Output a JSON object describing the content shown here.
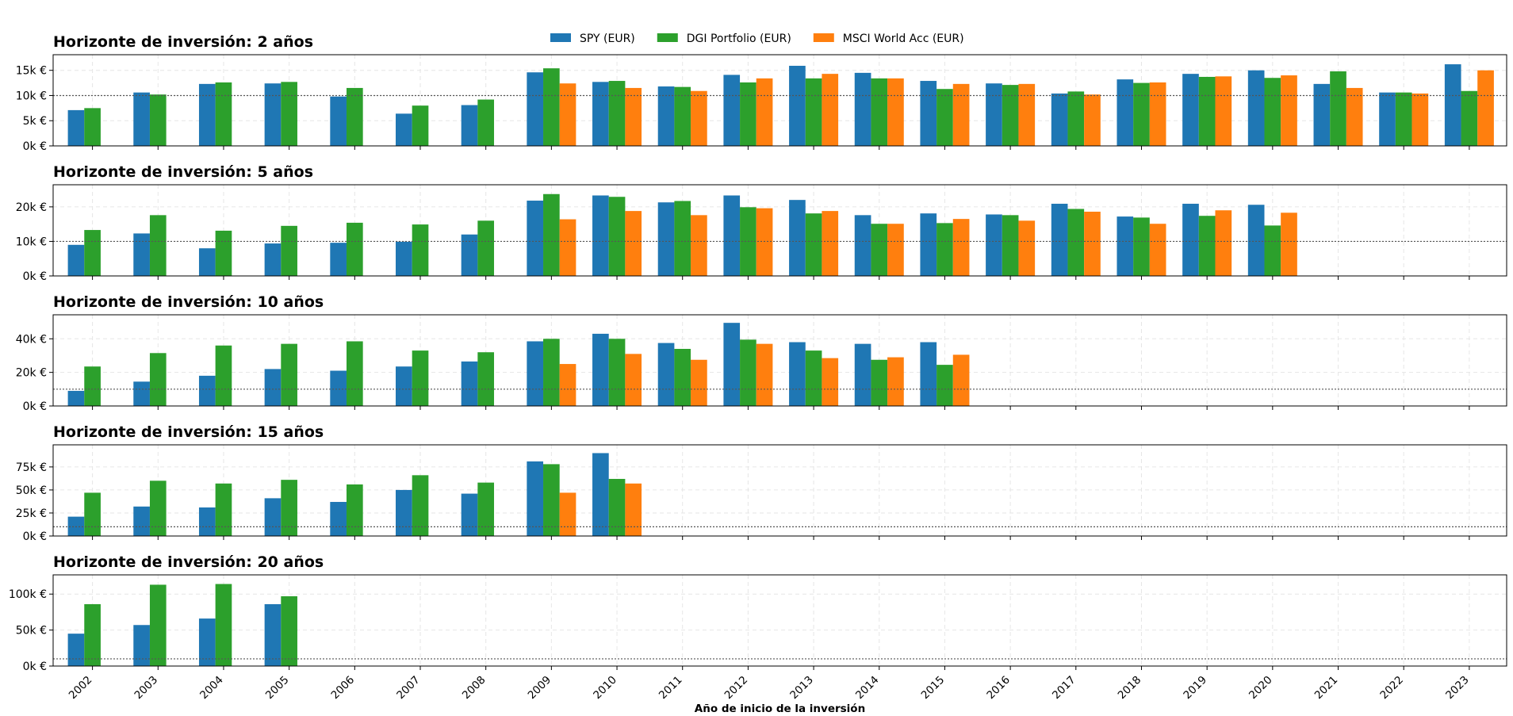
{
  "chart_data": [
    {
      "type": "bar",
      "title": "Horizonte de inversión: 2 años",
      "categories": [
        "2002",
        "2003",
        "2004",
        "2005",
        "2006",
        "2007",
        "2008",
        "2009",
        "2010",
        "2011",
        "2012",
        "2013",
        "2014",
        "2015",
        "2016",
        "2017",
        "2018",
        "2019",
        "2020",
        "2021",
        "2022",
        "2023"
      ],
      "series": [
        {
          "name": "SPY (EUR)",
          "color": "#1f77b4",
          "values": [
            7100,
            10600,
            12300,
            12400,
            9800,
            6400,
            8100,
            14600,
            12700,
            11800,
            14100,
            15900,
            14500,
            12900,
            12400,
            10400,
            13200,
            14300,
            15000,
            12300,
            10600,
            16200
          ]
        },
        {
          "name": "DGI Portfolio (EUR)",
          "color": "#2ca02c",
          "values": [
            7500,
            10200,
            12600,
            12700,
            11500,
            8000,
            9200,
            15400,
            12900,
            11700,
            12600,
            13400,
            13400,
            11300,
            12100,
            10800,
            12500,
            13700,
            13500,
            14800,
            10600,
            10900
          ]
        },
        {
          "name": "MSCI World Acc (EUR)",
          "color": "#ff7f0e",
          "values": [
            null,
            null,
            null,
            null,
            null,
            null,
            null,
            12400,
            11500,
            10900,
            13400,
            14300,
            13400,
            12300,
            12300,
            10200,
            12600,
            13800,
            14000,
            11500,
            10400,
            15000
          ]
        }
      ],
      "ylim": [
        0,
        18100
      ],
      "yticks": [
        {
          "value": 0,
          "label": "0k €"
        },
        {
          "value": 5000,
          "label": "5k €"
        },
        {
          "value": 10000,
          "label": "10k €"
        },
        {
          "value": 15000,
          "label": "15k €"
        }
      ],
      "hline": 10000,
      "grid": true,
      "legend": "top"
    },
    {
      "type": "bar",
      "title": "Horizonte de inversión: 5 años",
      "categories": [
        "2002",
        "2003",
        "2004",
        "2005",
        "2006",
        "2007",
        "2008",
        "2009",
        "2010",
        "2011",
        "2012",
        "2013",
        "2014",
        "2015",
        "2016",
        "2017",
        "2018",
        "2019",
        "2020",
        "2021",
        "2022",
        "2023"
      ],
      "series": [
        {
          "name": "SPY (EUR)",
          "color": "#1f77b4",
          "values": [
            9000,
            12300,
            8000,
            9400,
            9600,
            9900,
            12000,
            21800,
            23300,
            21300,
            23300,
            22000,
            17600,
            18100,
            17800,
            20900,
            17200,
            20900,
            20600,
            null,
            null,
            null
          ]
        },
        {
          "name": "DGI Portfolio (EUR)",
          "color": "#2ca02c",
          "values": [
            13300,
            17600,
            13100,
            14500,
            15400,
            14900,
            16000,
            23700,
            22900,
            21700,
            19900,
            18100,
            15100,
            15300,
            17600,
            19400,
            16900,
            17400,
            14600,
            null,
            null,
            null
          ]
        },
        {
          "name": "MSCI World Acc (EUR)",
          "color": "#ff7f0e",
          "values": [
            null,
            null,
            null,
            null,
            null,
            null,
            null,
            16400,
            18800,
            17600,
            19600,
            18800,
            15100,
            16500,
            16000,
            18600,
            15100,
            19000,
            18300,
            null,
            null,
            null
          ]
        }
      ],
      "ylim": [
        0,
        26400
      ],
      "yticks": [
        {
          "value": 0,
          "label": "0k €"
        },
        {
          "value": 10000,
          "label": "10k €"
        },
        {
          "value": 20000,
          "label": "20k €"
        }
      ],
      "hline": 10000,
      "grid": true
    },
    {
      "type": "bar",
      "title": "Horizonte de inversión: 10 años",
      "categories": [
        "2002",
        "2003",
        "2004",
        "2005",
        "2006",
        "2007",
        "2008",
        "2009",
        "2010",
        "2011",
        "2012",
        "2013",
        "2014",
        "2015",
        "2016",
        "2017",
        "2018",
        "2019",
        "2020",
        "2021",
        "2022",
        "2023"
      ],
      "series": [
        {
          "name": "SPY (EUR)",
          "color": "#1f77b4",
          "values": [
            9000,
            14500,
            18000,
            22000,
            21000,
            23500,
            26500,
            38500,
            43000,
            37500,
            49500,
            38000,
            37000,
            38000,
            null,
            null,
            null,
            null,
            null,
            null,
            null,
            null
          ]
        },
        {
          "name": "DGI Portfolio (EUR)",
          "color": "#2ca02c",
          "values": [
            23500,
            31500,
            36000,
            37000,
            38500,
            33000,
            32000,
            40000,
            40000,
            34000,
            39500,
            33000,
            27500,
            24500,
            null,
            null,
            null,
            null,
            null,
            null,
            null,
            null
          ]
        },
        {
          "name": "MSCI World Acc (EUR)",
          "color": "#ff7f0e",
          "values": [
            null,
            null,
            null,
            null,
            null,
            null,
            null,
            25000,
            31000,
            27500,
            37000,
            28500,
            29000,
            30500,
            null,
            null,
            null,
            null,
            null,
            null,
            null,
            null
          ]
        }
      ],
      "ylim": [
        0,
        54300
      ],
      "yticks": [
        {
          "value": 0,
          "label": "0k €"
        },
        {
          "value": 20000,
          "label": "20k €"
        },
        {
          "value": 40000,
          "label": "40k €"
        }
      ],
      "hline": 10000,
      "grid": true
    },
    {
      "type": "bar",
      "title": "Horizonte de inversión: 15 años",
      "categories": [
        "2002",
        "2003",
        "2004",
        "2005",
        "2006",
        "2007",
        "2008",
        "2009",
        "2010",
        "2011",
        "2012",
        "2013",
        "2014",
        "2015",
        "2016",
        "2017",
        "2018",
        "2019",
        "2020",
        "2021",
        "2022",
        "2023"
      ],
      "series": [
        {
          "name": "SPY (EUR)",
          "color": "#1f77b4",
          "values": [
            21000,
            32000,
            31000,
            41000,
            37000,
            50000,
            46000,
            81000,
            90000,
            null,
            null,
            null,
            null,
            null,
            null,
            null,
            null,
            null,
            null,
            null,
            null,
            null
          ]
        },
        {
          "name": "DGI Portfolio (EUR)",
          "color": "#2ca02c",
          "values": [
            47000,
            60000,
            57000,
            61000,
            56000,
            66000,
            58000,
            78000,
            62000,
            null,
            null,
            null,
            null,
            null,
            null,
            null,
            null,
            null,
            null,
            null,
            null,
            null
          ]
        },
        {
          "name": "MSCI World Acc (EUR)",
          "color": "#ff7f0e",
          "values": [
            null,
            null,
            null,
            null,
            null,
            null,
            null,
            47000,
            57000,
            null,
            null,
            null,
            null,
            null,
            null,
            null,
            null,
            null,
            null,
            null,
            null,
            null
          ]
        }
      ],
      "ylim": [
        0,
        99000
      ],
      "yticks": [
        {
          "value": 0,
          "label": "0k €"
        },
        {
          "value": 25000,
          "label": "25k €"
        },
        {
          "value": 50000,
          "label": "50k €"
        },
        {
          "value": 75000,
          "label": "75k €"
        }
      ],
      "hline": 10000,
      "grid": true
    },
    {
      "type": "bar",
      "title": "Horizonte de inversión: 20 años",
      "categories": [
        "2002",
        "2003",
        "2004",
        "2005",
        "2006",
        "2007",
        "2008",
        "2009",
        "2010",
        "2011",
        "2012",
        "2013",
        "2014",
        "2015",
        "2016",
        "2017",
        "2018",
        "2019",
        "2020",
        "2021",
        "2022",
        "2023"
      ],
      "series": [
        {
          "name": "SPY (EUR)",
          "color": "#1f77b4",
          "values": [
            45000,
            57000,
            66000,
            86000,
            null,
            null,
            null,
            null,
            null,
            null,
            null,
            null,
            null,
            null,
            null,
            null,
            null,
            null,
            null,
            null,
            null,
            null
          ]
        },
        {
          "name": "DGI Portfolio (EUR)",
          "color": "#2ca02c",
          "values": [
            86000,
            113000,
            114000,
            97000,
            null,
            null,
            null,
            null,
            null,
            null,
            null,
            null,
            null,
            null,
            null,
            null,
            null,
            null,
            null,
            null,
            null,
            null
          ]
        },
        {
          "name": "MSCI World Acc (EUR)",
          "color": "#ff7f0e",
          "values": [
            null,
            null,
            null,
            null,
            null,
            null,
            null,
            null,
            null,
            null,
            null,
            null,
            null,
            null,
            null,
            null,
            null,
            null,
            null,
            null,
            null,
            null
          ]
        }
      ],
      "ylim": [
        0,
        126700
      ],
      "yticks": [
        {
          "value": 0,
          "label": "0k €"
        },
        {
          "value": 50000,
          "label": "50k €"
        },
        {
          "value": 100000,
          "label": "100k €"
        }
      ],
      "hline": 10000,
      "grid": true,
      "xlabel": "Año de inicio de la inversión"
    }
  ]
}
